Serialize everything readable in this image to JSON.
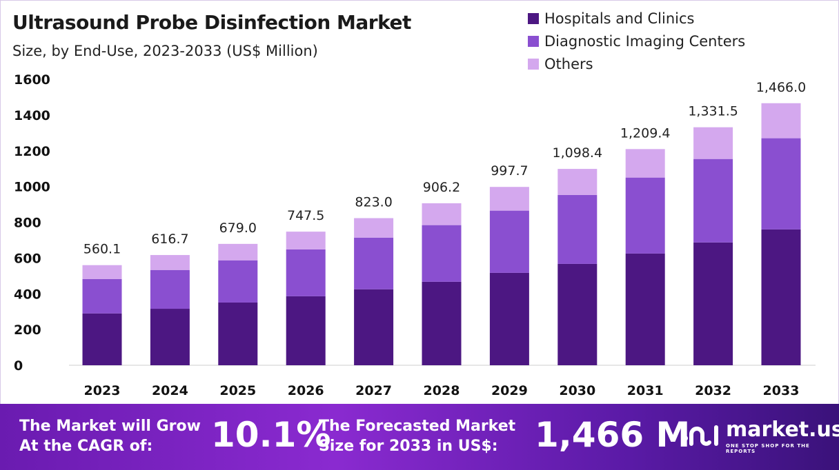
{
  "chart_data": {
    "type": "bar",
    "stacked": true,
    "title": "Ultrasound Probe Disinfection Market",
    "subtitle": "Size, by End-Use, 2023-2033 (US$ Million)",
    "categories": [
      "2023",
      "2024",
      "2025",
      "2026",
      "2027",
      "2028",
      "2029",
      "2030",
      "2031",
      "2032",
      "2033"
    ],
    "totals": [
      "560.1",
      "616.7",
      "679.0",
      "747.5",
      "823.0",
      "906.2",
      "997.7",
      "1,098.4",
      "1,209.4",
      "1,331.5",
      "1,466.0"
    ],
    "series": [
      {
        "name": "Hospitals and Clinics",
        "color": "#4c1782",
        "values": [
          290,
          316,
          351,
          386,
          425,
          467,
          517,
          567,
          625,
          687,
          760
        ]
      },
      {
        "name": "Diagnostic Imaging Centers",
        "color": "#8a4fd0",
        "values": [
          192,
          217,
          236,
          262,
          289,
          317,
          348,
          386,
          425,
          467,
          510
        ]
      },
      {
        "name": "Others",
        "color": "#d4a8ee",
        "values": [
          78.1,
          83.7,
          92,
          99.5,
          109,
          122.2,
          132.7,
          145.4,
          159.4,
          177.5,
          196
        ]
      }
    ],
    "ylim": [
      0,
      1600
    ],
    "yticks": [
      "0",
      "200",
      "400",
      "600",
      "800",
      "1000",
      "1200",
      "1400",
      "1600"
    ],
    "grid": false,
    "legend": "top-right"
  },
  "footer": {
    "cagr_label": [
      "The Market will Grow",
      "At the CAGR of:"
    ],
    "cagr_value": "10.1%",
    "forecast_label": [
      "The Forecasted Market",
      "Size for 2033 in US$:"
    ],
    "forecast_value": "1,466 M",
    "brand": "market.us",
    "tagline": "ONE STOP SHOP FOR THE REPORTS"
  }
}
